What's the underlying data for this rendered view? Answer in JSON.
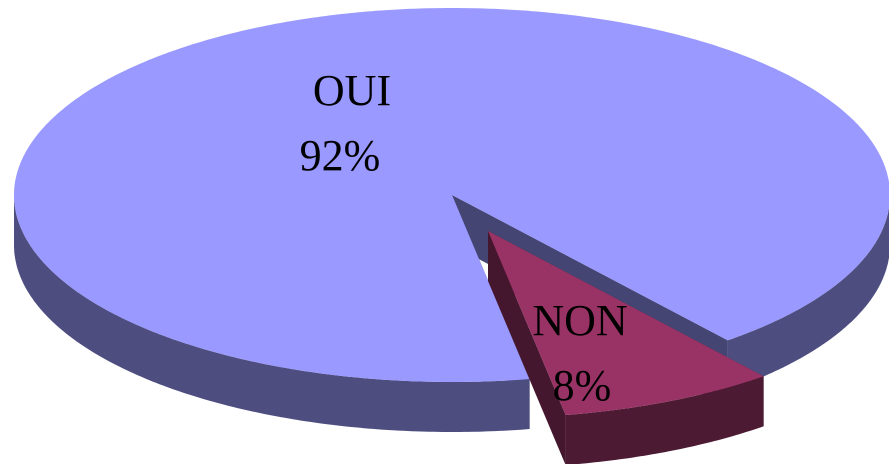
{
  "chart_data": {
    "type": "pie3d",
    "categories": [
      "OUI",
      "NON"
    ],
    "values": [
      92,
      8
    ],
    "value_labels": [
      "92%",
      "8%"
    ],
    "colors": [
      "#9999ff",
      "#993366"
    ]
  }
}
